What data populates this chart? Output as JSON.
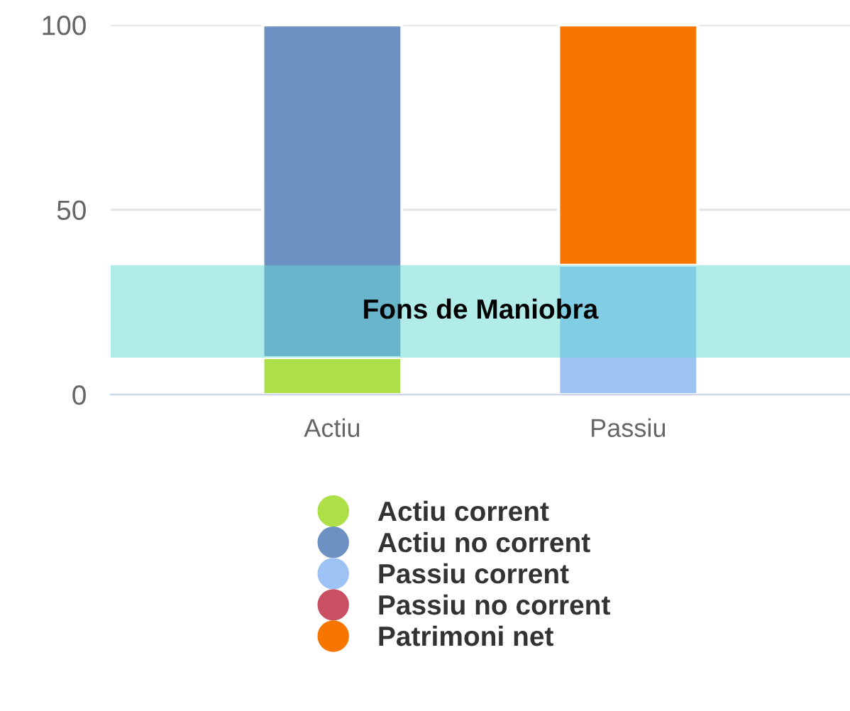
{
  "chart_data": {
    "type": "bar",
    "stacked": true,
    "categories": [
      "Actiu",
      "Passiu"
    ],
    "series": [
      {
        "name": "Actiu corrent",
        "color": "#ade046",
        "values": [
          10,
          0
        ]
      },
      {
        "name": "Actiu no corrent",
        "color": "#6d91c2",
        "values": [
          90,
          0
        ]
      },
      {
        "name": "Passiu corrent",
        "color": "#9cc3f4",
        "values": [
          0,
          35
        ]
      },
      {
        "name": "Passiu no corrent",
        "color": "#c94f62",
        "values": [
          0,
          0
        ]
      },
      {
        "name": "Patrimoni net",
        "color": "#f77600",
        "values": [
          0,
          65
        ]
      }
    ],
    "ylim": [
      0,
      100
    ],
    "yticks": [
      0,
      50,
      100
    ],
    "grid": "y",
    "legend": "bottom",
    "bands": [
      {
        "axis": "y",
        "from": 10,
        "to": 35,
        "label": "Fons de Maniobra",
        "color": "#66d9d3"
      }
    ]
  }
}
